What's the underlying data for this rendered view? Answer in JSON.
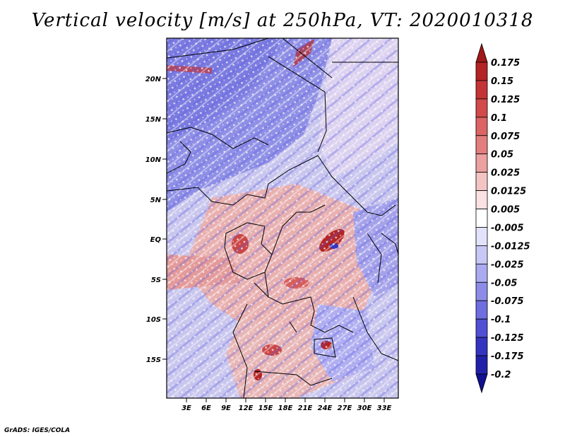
{
  "title": "Vertical velocity [m/s] at 250hPa, VT: 2020010318",
  "credit": "GrADS: IGES/COLA",
  "map": {
    "lat_labels": [
      "20N",
      "15N",
      "10N",
      "5N",
      "EQ",
      "5S",
      "10S",
      "15S"
    ],
    "lon_labels": [
      "3E",
      "6E",
      "9E",
      "12E",
      "15E",
      "18E",
      "21E",
      "24E",
      "27E",
      "30E",
      "33E"
    ]
  },
  "colorbar": {
    "levels": [
      "0.175",
      "0.15",
      "0.125",
      "0.1",
      "0.075",
      "0.05",
      "0.025",
      "0.0125",
      "0.005",
      "-0.005",
      "-0.0125",
      "-0.025",
      "-0.05",
      "-0.075",
      "-0.1",
      "-0.125",
      "-0.175",
      "-0.2"
    ],
    "colors": [
      "#a01818",
      "#b42424",
      "#c43434",
      "#d24a4a",
      "#dc6464",
      "#e47e7e",
      "#eca0a0",
      "#f4c4c4",
      "#fae2e2",
      "#ffffff",
      "#e2e2fa",
      "#c8c8f6",
      "#aaaaf0",
      "#8c8ce8",
      "#6e6ee0",
      "#5050d4",
      "#3434c0",
      "#2020a8",
      "#101090"
    ]
  }
}
